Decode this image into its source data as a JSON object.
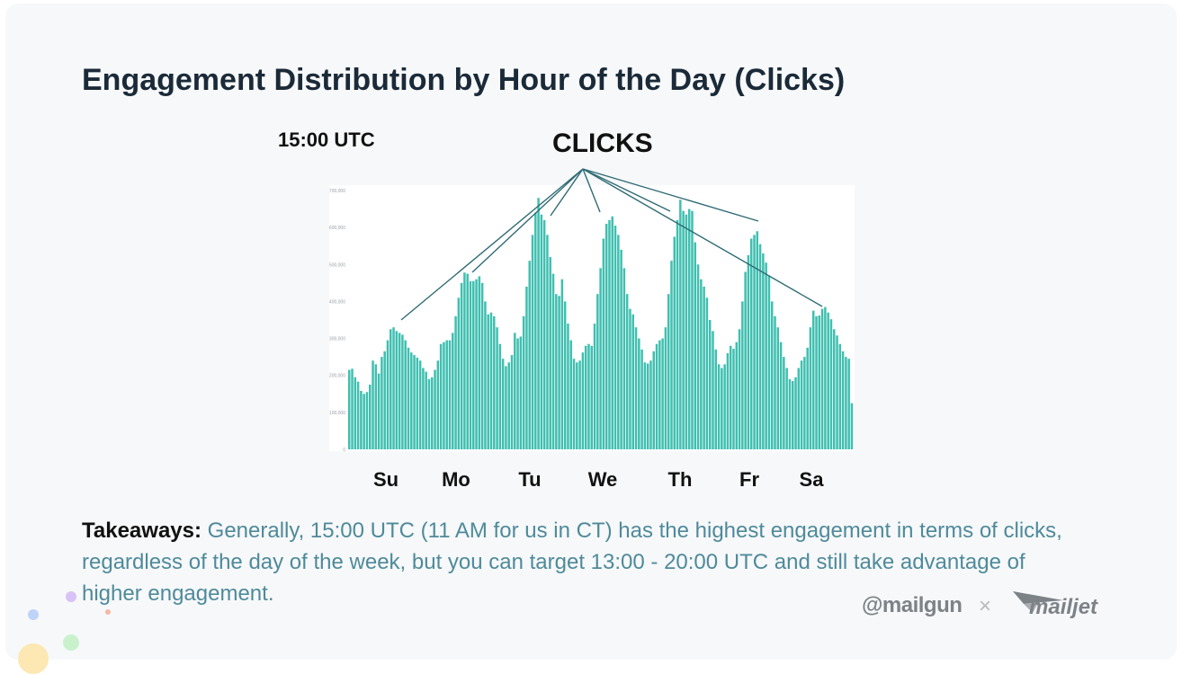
{
  "slide": {
    "title": "Engagement Distribution by Hour of the Day (Clicks)",
    "utc_label": "15:00 UTC",
    "clicks_label": "CLICKS",
    "takeaways_label": "Takeaways:",
    "takeaways_text": " Generally, 15:00 UTC (11 AM for us in CT) has the highest engagement in terms of clicks, regardless of the day of the week, but you can target 13:00 - 20:00 UTC and still take advantage of higher engagement."
  },
  "logos": {
    "mailgun": "@mailgun",
    "separator": "×",
    "mailjet": "mailjet"
  },
  "colors": {
    "bar": "#3fbfb0",
    "annotation_line": "#2f6b74",
    "title": "#1b2a38",
    "takeaways_text": "#4f8a9a"
  },
  "chart_data": {
    "type": "bar",
    "x_unit": "hour of week (UTC), starting Sunday 00:00",
    "day_labels": [
      "Su",
      "Mo",
      "Tu",
      "We",
      "Th",
      "Fr",
      "Sa"
    ],
    "ylim": [
      0,
      700000
    ],
    "y_ticks": [
      "0",
      "100,000",
      "200,000",
      "300,000",
      "400,000",
      "500,000",
      "600,000",
      "700,000"
    ],
    "values": [
      215000,
      218000,
      195000,
      183000,
      158000,
      150000,
      155000,
      175000,
      240000,
      230000,
      205000,
      250000,
      265000,
      295000,
      325000,
      330000,
      320000,
      315000,
      310000,
      295000,
      275000,
      262000,
      255000,
      248000,
      240000,
      220000,
      210000,
      190000,
      195000,
      215000,
      240000,
      285000,
      290000,
      295000,
      295000,
      315000,
      360000,
      410000,
      450000,
      478000,
      475000,
      455000,
      455000,
      460000,
      468000,
      450000,
      400000,
      365000,
      370000,
      360000,
      330000,
      285000,
      245000,
      225000,
      235000,
      255000,
      315000,
      300000,
      305000,
      360000,
      440000,
      510000,
      580000,
      640000,
      680000,
      635000,
      620000,
      580000,
      520000,
      475000,
      420000,
      415000,
      460000,
      400000,
      340000,
      295000,
      245000,
      235000,
      240000,
      262000,
      280000,
      285000,
      280000,
      340000,
      420000,
      490000,
      570000,
      610000,
      620000,
      630000,
      605000,
      580000,
      540000,
      490000,
      420000,
      380000,
      365000,
      330000,
      300000,
      270000,
      235000,
      232000,
      240000,
      265000,
      285000,
      295000,
      300000,
      330000,
      420000,
      510000,
      575000,
      620000,
      675000,
      645000,
      635000,
      650000,
      645000,
      560000,
      500000,
      460000,
      440000,
      410000,
      350000,
      320000,
      270000,
      230000,
      220000,
      230000,
      260000,
      280000,
      272000,
      290000,
      325000,
      400000,
      480000,
      525000,
      570000,
      580000,
      590000,
      555000,
      530000,
      505000,
      470000,
      400000,
      360000,
      330000,
      290000,
      250000,
      220000,
      190000,
      185000,
      195000,
      220000,
      240000,
      250000,
      275000,
      330000,
      375000,
      360000,
      362000,
      380000,
      385000,
      370000,
      352000,
      325000,
      308000,
      285000,
      265000,
      250000,
      245000,
      125000
    ],
    "annotation": {
      "label": "CLICKS",
      "targets_hour_of_week": [
        15,
        39,
        63,
        87,
        111,
        135,
        159
      ]
    }
  }
}
